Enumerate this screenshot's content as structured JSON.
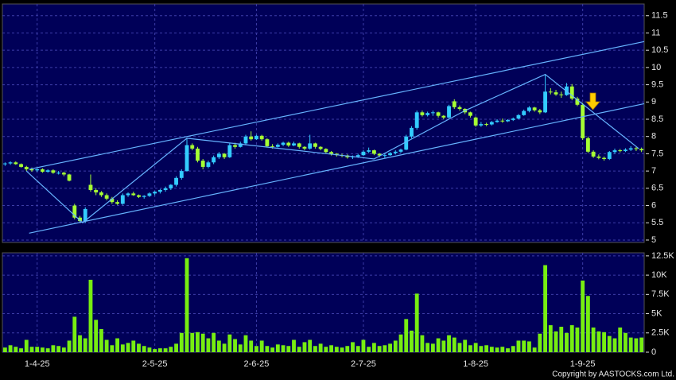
{
  "chart_data": {
    "type": "candlestick",
    "categories": [
      null,
      null,
      null,
      null,
      null,
      null,
      "1-4-25",
      null,
      null,
      null,
      null,
      null,
      null,
      null,
      null,
      null,
      null,
      null,
      null,
      null,
      null,
      null,
      null,
      null,
      null,
      null,
      null,
      null,
      "2-5-25",
      null,
      null,
      null,
      null,
      null,
      null,
      null,
      null,
      null,
      null,
      null,
      null,
      null,
      null,
      null,
      null,
      null,
      null,
      "2-6-25",
      null,
      null,
      null,
      null,
      null,
      null,
      null,
      null,
      null,
      null,
      null,
      null,
      null,
      null,
      null,
      null,
      null,
      null,
      null,
      "2-7-25",
      null,
      null,
      null,
      null,
      null,
      null,
      null,
      null,
      null,
      null,
      null,
      null,
      null,
      null,
      null,
      null,
      null,
      null,
      null,
      null,
      "1-8-25",
      null,
      null,
      null,
      null,
      null,
      null,
      null,
      null,
      null,
      null,
      null,
      null,
      null,
      null,
      null,
      null,
      null,
      null,
      null,
      "1-9-25",
      null,
      null,
      null,
      null,
      null,
      null,
      null,
      null,
      null,
      null,
      null
    ],
    "open": [
      7.2,
      7.22,
      7.25,
      7.2,
      7.12,
      7.05,
      7.02,
      7.05,
      6.98,
      7.02,
      6.95,
      6.95,
      6.9,
      6.0,
      5.65,
      5.55,
      6.6,
      6.45,
      6.38,
      6.3,
      6.2,
      6.1,
      6.05,
      6.3,
      6.35,
      6.3,
      6.25,
      6.28,
      6.35,
      6.4,
      6.45,
      6.5,
      6.6,
      6.8,
      7.0,
      7.75,
      7.65,
      7.3,
      7.12,
      7.25,
      7.4,
      7.5,
      7.4,
      7.75,
      7.7,
      7.8,
      8.0,
      7.92,
      8.02,
      7.92,
      7.72,
      7.7,
      7.76,
      7.82,
      7.74,
      7.8,
      7.7,
      7.65,
      7.8,
      7.7,
      7.64,
      7.55,
      7.5,
      7.46,
      7.45,
      7.4,
      7.42,
      7.46,
      7.56,
      7.6,
      7.5,
      7.45,
      7.46,
      7.52,
      7.56,
      7.62,
      8.0,
      8.25,
      8.7,
      8.62,
      8.68,
      8.7,
      8.6,
      8.55,
      9.02,
      8.85,
      8.8,
      8.7,
      8.55,
      8.32,
      8.36,
      8.35,
      8.42,
      8.46,
      8.44,
      8.48,
      8.52,
      8.62,
      8.74,
      8.84,
      8.76,
      8.7,
      9.3,
      9.28,
      9.22,
      9.2,
      9.45,
      9.1,
      8.92,
      7.95,
      7.56,
      7.42,
      7.38,
      7.35,
      7.55,
      7.6,
      7.58,
      7.62,
      7.66,
      7.64
    ],
    "high": [
      7.25,
      7.28,
      7.28,
      7.22,
      7.15,
      7.1,
      7.08,
      7.08,
      7.05,
      7.05,
      7.0,
      6.98,
      6.92,
      6.05,
      5.7,
      5.95,
      6.9,
      6.5,
      6.42,
      6.35,
      6.25,
      6.15,
      6.35,
      6.38,
      6.4,
      6.32,
      6.3,
      6.38,
      6.42,
      6.48,
      6.55,
      6.62,
      6.85,
      7.05,
      7.95,
      7.8,
      7.7,
      7.35,
      7.3,
      7.45,
      7.55,
      7.52,
      7.8,
      7.82,
      7.85,
      8.05,
      8.15,
      8.05,
      8.05,
      7.95,
      7.78,
      7.8,
      7.85,
      7.85,
      7.85,
      7.82,
      7.72,
      8.05,
      7.82,
      7.72,
      7.66,
      7.58,
      7.52,
      7.5,
      7.48,
      7.45,
      7.5,
      7.6,
      7.68,
      7.62,
      7.52,
      7.5,
      7.55,
      7.6,
      7.65,
      8.05,
      8.3,
      8.75,
      8.75,
      8.72,
      8.75,
      8.72,
      8.62,
      8.92,
      9.08,
      8.9,
      8.82,
      8.72,
      8.58,
      8.42,
      8.4,
      8.45,
      8.5,
      8.52,
      8.5,
      8.55,
      8.65,
      8.78,
      8.88,
      8.86,
      8.8,
      9.8,
      9.4,
      9.35,
      9.3,
      9.55,
      9.52,
      9.15,
      8.98,
      8.0,
      7.6,
      7.48,
      7.42,
      7.58,
      7.65,
      7.64,
      7.66,
      7.72,
      7.7,
      7.68
    ],
    "low": [
      7.15,
      7.18,
      7.18,
      7.1,
      7.0,
      6.98,
      6.98,
      6.95,
      6.95,
      6.92,
      6.9,
      6.85,
      6.7,
      5.6,
      5.5,
      5.5,
      6.4,
      6.3,
      6.25,
      6.15,
      6.05,
      6.02,
      6.02,
      6.25,
      6.28,
      6.22,
      6.2,
      6.25,
      6.3,
      6.35,
      6.4,
      6.45,
      6.55,
      6.75,
      6.98,
      7.6,
      7.25,
      7.05,
      7.08,
      7.2,
      7.35,
      7.35,
      7.38,
      7.65,
      7.68,
      7.75,
      7.88,
      7.9,
      7.88,
      7.68,
      7.65,
      7.68,
      7.72,
      7.7,
      7.72,
      7.65,
      7.6,
      7.62,
      7.65,
      7.6,
      7.5,
      7.45,
      7.42,
      7.4,
      7.36,
      7.35,
      7.38,
      7.44,
      7.52,
      7.46,
      7.4,
      7.38,
      7.44,
      7.48,
      7.52,
      7.6,
      7.95,
      8.2,
      8.58,
      8.58,
      8.6,
      8.55,
      8.5,
      8.52,
      8.8,
      8.75,
      8.65,
      8.55,
      8.28,
      8.28,
      8.3,
      8.32,
      8.4,
      8.4,
      8.42,
      8.45,
      8.5,
      8.6,
      8.7,
      8.72,
      8.65,
      8.68,
      9.22,
      9.18,
      9.12,
      9.18,
      9.05,
      8.88,
      7.9,
      7.52,
      7.38,
      7.34,
      7.3,
      7.32,
      7.5,
      7.54,
      7.55,
      7.58,
      7.58,
      7.55
    ],
    "close": [
      7.22,
      7.25,
      7.2,
      7.12,
      7.05,
      7.02,
      7.05,
      6.98,
      7.02,
      6.95,
      6.95,
      6.9,
      6.72,
      5.65,
      5.55,
      5.9,
      6.45,
      6.38,
      6.3,
      6.2,
      6.1,
      6.05,
      6.3,
      6.35,
      6.3,
      6.25,
      6.28,
      6.35,
      6.4,
      6.45,
      6.5,
      6.6,
      6.8,
      7.0,
      7.75,
      7.65,
      7.3,
      7.12,
      7.25,
      7.4,
      7.5,
      7.4,
      7.75,
      7.7,
      7.8,
      8.0,
      7.92,
      8.02,
      7.92,
      7.72,
      7.7,
      7.76,
      7.82,
      7.74,
      7.8,
      7.7,
      7.65,
      7.8,
      7.7,
      7.64,
      7.55,
      7.5,
      7.46,
      7.45,
      7.4,
      7.42,
      7.46,
      7.56,
      7.6,
      7.5,
      7.45,
      7.46,
      7.52,
      7.56,
      7.62,
      8.0,
      8.25,
      8.7,
      8.62,
      8.68,
      8.7,
      8.6,
      8.55,
      8.88,
      8.85,
      8.8,
      8.7,
      8.6,
      8.32,
      8.36,
      8.35,
      8.42,
      8.46,
      8.44,
      8.48,
      8.52,
      8.62,
      8.74,
      8.84,
      8.76,
      8.7,
      9.3,
      9.28,
      9.22,
      9.2,
      9.45,
      9.1,
      8.92,
      7.95,
      7.56,
      7.42,
      7.38,
      7.35,
      7.55,
      7.6,
      7.58,
      7.62,
      7.66,
      7.64,
      7.6
    ],
    "volume": [
      600,
      900,
      700,
      500,
      1600,
      700,
      700,
      600,
      500,
      900,
      800,
      600,
      1500,
      4600,
      2200,
      1800,
      9400,
      4200,
      3000,
      1600,
      900,
      1800,
      1000,
      1200,
      1500,
      1100,
      800,
      600,
      400,
      500,
      500,
      700,
      1100,
      2500,
      12200,
      2500,
      2600,
      2400,
      1800,
      2500,
      1500,
      1100,
      2300,
      1700,
      1000,
      2200,
      1500,
      800,
      1500,
      800,
      600,
      1000,
      900,
      800,
      1600,
      700,
      1300,
      1600,
      800,
      1100,
      700,
      900,
      700,
      600,
      800,
      1300,
      800,
      1600,
      700,
      1200,
      800,
      900,
      1100,
      1500,
      2300,
      4300,
      2800,
      7600,
      2200,
      1200,
      1100,
      1800,
      1500,
      2200,
      1900,
      1200,
      1600,
      900,
      1200,
      800,
      900,
      700,
      600,
      700,
      500,
      800,
      1500,
      1500,
      1400,
      600,
      2400,
      11300,
      3500,
      2700,
      3300,
      2500,
      3500,
      3200,
      9300,
      7300,
      3200,
      2700,
      2600,
      2100,
      1800,
      3200,
      2500,
      1900,
      1800,
      1900
    ],
    "up_color": "#33ccff",
    "down_color": "#a6ff33",
    "volume_color": "#77ee11",
    "ylim": [
      4.93,
      11.84
    ],
    "yticks": [
      5,
      5.5,
      6,
      6.5,
      7,
      7.5,
      8,
      8.5,
      9,
      9.5,
      10,
      10.5,
      11,
      11.5
    ],
    "volume_ylim": [
      0,
      12900
    ],
    "volume_yticks": [
      0,
      {
        "value": 2500,
        "label": "2.5K"
      },
      {
        "value": 5000,
        "label": "5K"
      },
      {
        "value": 7500,
        "label": "7.5K"
      },
      {
        "value": 10000,
        "label": "10K"
      },
      {
        "value": 12500,
        "label": "12.5K"
      }
    ],
    "grid": true,
    "trendline_color": "#66b3ff",
    "trendlines": [
      {
        "x": [
          4.5,
          119.5
        ],
        "values": [
          7.05,
          10.75
        ]
      },
      {
        "x": [
          4.5,
          119.5
        ],
        "values": [
          5.2,
          8.95
        ]
      },
      {
        "x": [
          4,
          14.5,
          34,
          69,
          86,
          101,
          118.5
        ],
        "values": [
          7.0,
          5.5,
          7.95,
          7.35,
          8.75,
          9.8,
          7.65
        ]
      }
    ],
    "copyright": "Copyright by AASTOCKS.com Ltd."
  }
}
